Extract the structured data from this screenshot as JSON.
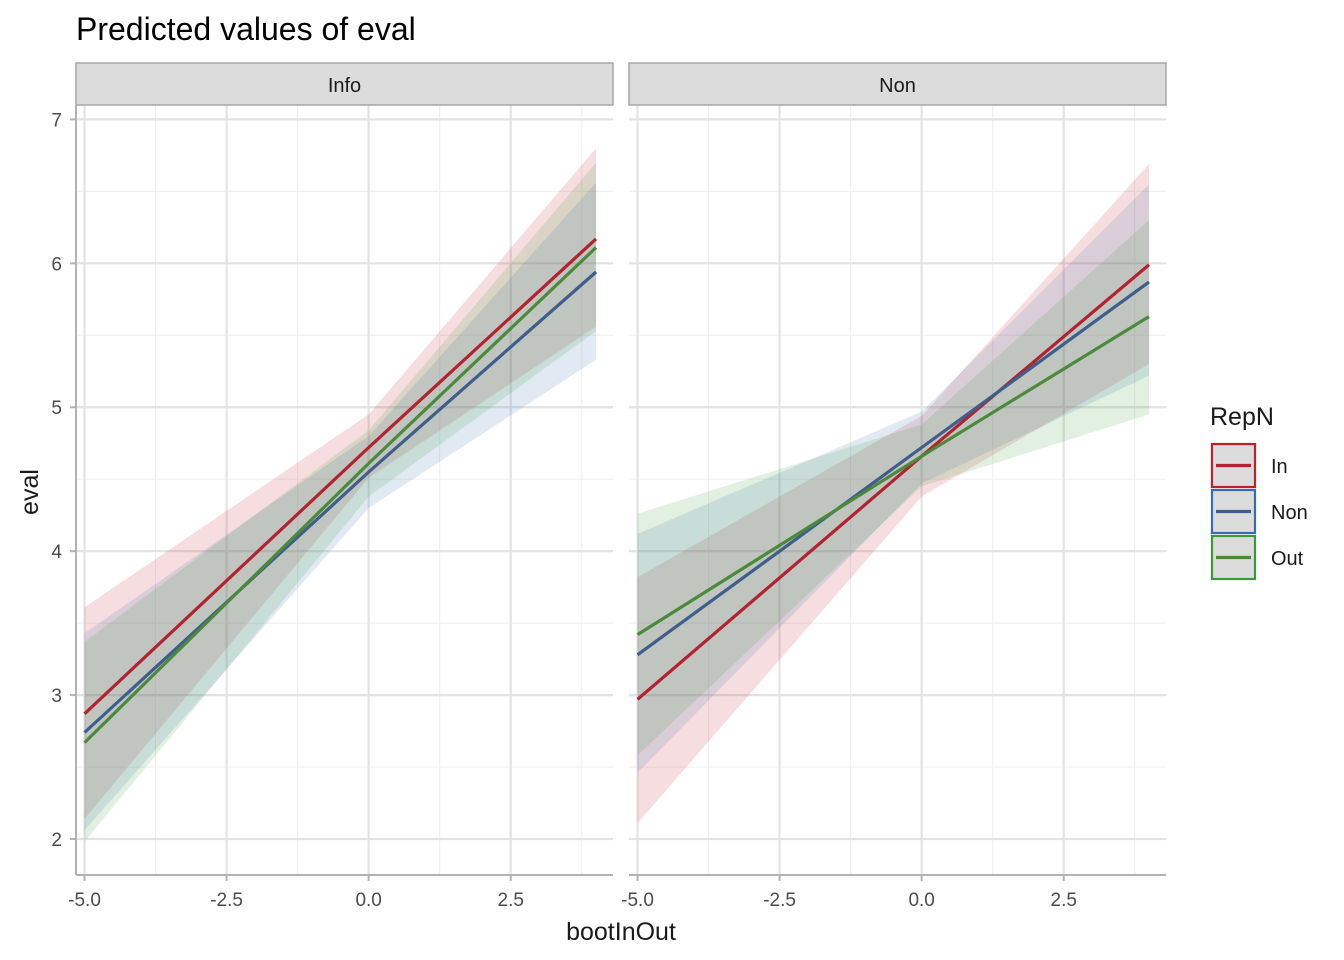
{
  "chart_data": {
    "type": "line",
    "title": "Predicted values of eval",
    "xlabel": "bootInOut",
    "ylabel": "eval",
    "xlim": [
      -5.15,
      4.3
    ],
    "ylim": [
      1.75,
      7.1
    ],
    "x_ticks": [
      "-5.0",
      "-2.5",
      "0.0",
      "2.5"
    ],
    "x_tick_values": [
      -5,
      -2.5,
      0,
      2.5
    ],
    "y_ticks": [
      "2",
      "3",
      "4",
      "5",
      "6",
      "7"
    ],
    "y_tick_values": [
      2,
      3,
      4,
      5,
      6,
      7
    ],
    "x_minor_values": [
      -3.75,
      -1.25,
      1.25,
      3.75
    ],
    "y_minor_values": [
      2.5,
      3.5,
      4.5,
      5.5,
      6.5
    ],
    "grid": true,
    "legend": {
      "title": "RepN",
      "placement": "right",
      "entries": [
        {
          "label": "In",
          "color": "#c0202c"
        },
        {
          "label": "Non",
          "color": "#386cb0"
        },
        {
          "label": "Out",
          "color": "#3a9a3a"
        }
      ]
    },
    "panels": [
      {
        "name": "Info",
        "series": [
          {
            "name": "In",
            "color": "#c0202c",
            "line_color": "#b22231",
            "x": [
              -5,
              0,
              4
            ],
            "y": [
              2.87,
              4.72,
              6.17
            ],
            "lower": [
              2.14,
              4.51,
              5.56
            ],
            "upper": [
              3.61,
              4.95,
              6.8
            ]
          },
          {
            "name": "Non",
            "color": "#386cb0",
            "line_color": "#3f5e8c",
            "x": [
              -5,
              0,
              4
            ],
            "y": [
              2.74,
              4.55,
              5.94
            ],
            "lower": [
              2.06,
              4.3,
              5.33
            ],
            "upper": [
              3.43,
              4.8,
              6.56
            ]
          },
          {
            "name": "Out",
            "color": "#3a9a3a",
            "line_color": "#4b8a3c",
            "x": [
              -5,
              0,
              4
            ],
            "y": [
              2.67,
              4.61,
              6.11
            ],
            "lower": [
              1.98,
              4.38,
              5.53
            ],
            "upper": [
              3.37,
              4.84,
              6.7
            ]
          }
        ]
      },
      {
        "name": "Non",
        "series": [
          {
            "name": "In",
            "color": "#c0202c",
            "line_color": "#b22231",
            "x": [
              -5,
              0,
              4
            ],
            "y": [
              2.97,
              4.66,
              5.99
            ],
            "lower": [
              2.11,
              4.38,
              5.3
            ],
            "upper": [
              3.82,
              4.94,
              6.69
            ]
          },
          {
            "name": "Non",
            "color": "#386cb0",
            "line_color": "#3f5e8c",
            "x": [
              -5,
              0,
              4
            ],
            "y": [
              3.28,
              4.72,
              5.87
            ],
            "lower": [
              2.46,
              4.47,
              5.22
            ],
            "upper": [
              4.12,
              4.97,
              6.55
            ]
          },
          {
            "name": "Out",
            "color": "#3a9a3a",
            "line_color": "#4b8a3c",
            "x": [
              -5,
              0,
              4
            ],
            "y": [
              3.42,
              4.66,
              5.63
            ],
            "lower": [
              2.58,
              4.45,
              4.95
            ],
            "upper": [
              4.26,
              4.88,
              6.3
            ]
          }
        ]
      }
    ]
  }
}
